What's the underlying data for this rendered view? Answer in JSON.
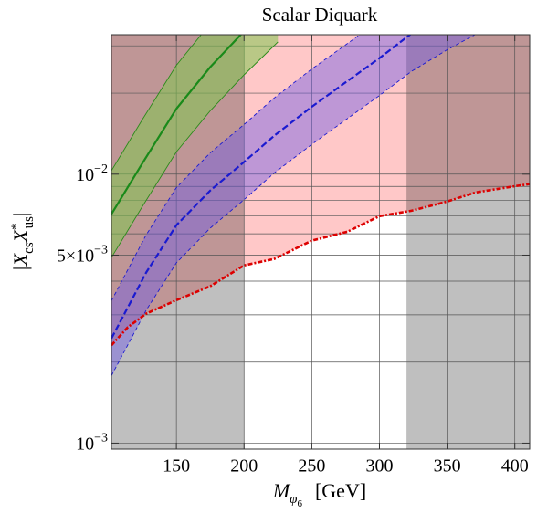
{
  "chart_data": {
    "type": "line",
    "title": "Scalar Diquark",
    "x_label": {
      "main": "M",
      "sub": "φ",
      "subsub": "6",
      "unit": "[GeV]"
    },
    "y_label": [
      "|X",
      "cs",
      "X",
      "*",
      "us",
      "|"
    ],
    "xlim": [
      102,
      411
    ],
    "ylim": [
      0.00095,
      0.033
    ],
    "log_y": true,
    "grid": true,
    "xticks": [
      150,
      200,
      250,
      300,
      350,
      400
    ],
    "yticks": [
      {
        "value": 0.001,
        "label": "10",
        "sup": "−3"
      },
      {
        "value": 0.005,
        "label": "5×10",
        "sup": "−3"
      },
      {
        "value": 0.01,
        "label": "10",
        "sup": "−2"
      }
    ],
    "ygrid": [
      0.001,
      0.002,
      0.003,
      0.004,
      0.005,
      0.006,
      0.007,
      0.008,
      0.009,
      0.01,
      0.02,
      0.03
    ],
    "shade_upto": 200,
    "shade_from": 320,
    "shade_color": "rgba(0,0,0,0.25)",
    "excluded_color": "#ffc8c8",
    "bands": [
      {
        "color": "rgba(128,200,80,0.55)",
        "edge_color": "#2a8a1a",
        "dashed": false,
        "x": [
          102,
          125,
          150,
          175,
          200,
          225
        ],
        "upper": [
          0.0103,
          0.016,
          0.0254,
          0.0363,
          0.0493,
          0.065
        ],
        "lower": [
          0.0049,
          0.0076,
          0.0121,
          0.0172,
          0.0234,
          0.031
        ]
      },
      {
        "color": "rgba(110,90,230,0.45)",
        "edge_color": "#1a1ad0",
        "dashed": true,
        "x": [
          102,
          127.7,
          150,
          175,
          200,
          222.3,
          250,
          276.4,
          300,
          323.6,
          350,
          380
        ],
        "upper": [
          0.00338,
          0.00595,
          0.00891,
          0.012,
          0.0153,
          0.0192,
          0.0246,
          0.0306,
          0.0373,
          0.046,
          0.055,
          0.066
        ],
        "lower": [
          0.00178,
          0.00312,
          0.00468,
          0.0063,
          0.00804,
          0.0101,
          0.0129,
          0.0161,
          0.0196,
          0.0241,
          0.029,
          0.035
        ]
      }
    ],
    "series": [
      {
        "color": "#1a8a1a",
        "dash": false,
        "x": [
          102,
          125,
          150,
          175,
          200,
          225
        ],
        "values": [
          0.0071,
          0.011,
          0.0175,
          0.025,
          0.034,
          0.045
        ]
      },
      {
        "color": "#1a1ad0",
        "dash": true,
        "x": [
          102,
          127.7,
          150,
          175,
          200,
          222.3,
          250,
          276.4,
          300,
          323.6
        ],
        "values": [
          0.00245,
          0.00431,
          0.00646,
          0.00869,
          0.0111,
          0.0139,
          0.0178,
          0.0222,
          0.027,
          0.0333
        ]
      },
      {
        "color": "#dd0000",
        "dash": true,
        "x": [
          102,
          114.2,
          127.7,
          150,
          175,
          200,
          222.3,
          250,
          276.4,
          300,
          323.6,
          350,
          371,
          400.7,
          411
        ],
        "values": [
          0.00231,
          0.0027,
          0.00303,
          0.0034,
          0.00383,
          0.00458,
          0.00484,
          0.00566,
          0.00611,
          0.00698,
          0.00731,
          0.00791,
          0.00855,
          0.00903,
          0.00918
        ],
        "limit": true
      }
    ]
  }
}
